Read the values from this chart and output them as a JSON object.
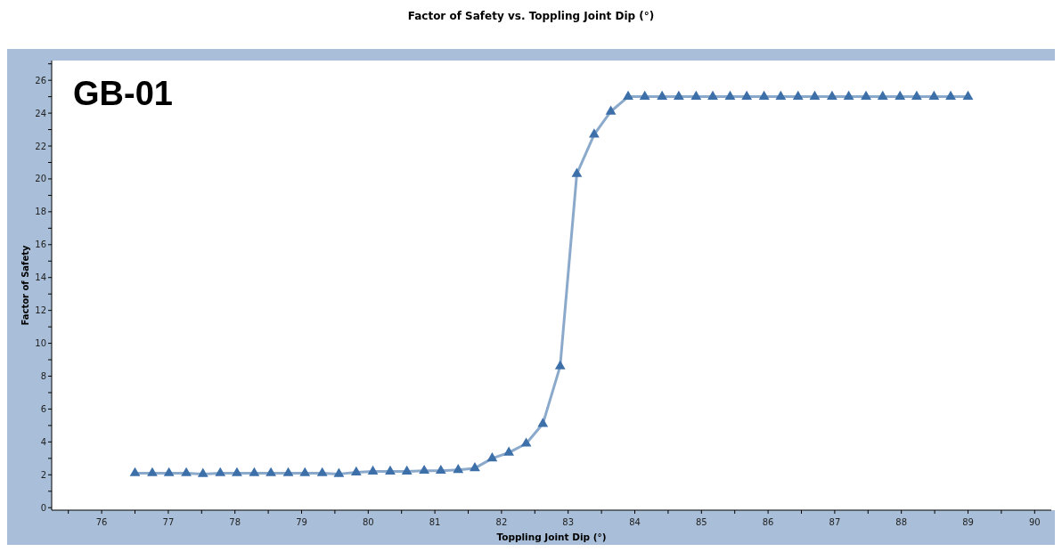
{
  "chart_data": {
    "type": "line",
    "title": "Factor of Safety vs. Toppling Joint Dip (°)",
    "xlabel": "Toppling Joint Dip (°)",
    "ylabel": "Factor of Safety",
    "annotations": [
      "GB-01"
    ],
    "xlim": [
      75.25,
      90.25
    ],
    "ylim": [
      -0.15,
      27.2
    ],
    "xticks": [
      {
        "value": 75.5,
        "label": null
      },
      76,
      {
        "value": 76.5,
        "label": null
      },
      77,
      {
        "value": 77.5,
        "label": null
      },
      78,
      {
        "value": 78.5,
        "label": null
      },
      79,
      {
        "value": 79.5,
        "label": null
      },
      80,
      {
        "value": 80.5,
        "label": null
      },
      81,
      {
        "value": 81.5,
        "label": null
      },
      82,
      {
        "value": 82.5,
        "label": null
      },
      83,
      {
        "value": 83.5,
        "label": null
      },
      84,
      {
        "value": 84.5,
        "label": null
      },
      85,
      {
        "value": 85.5,
        "label": null
      },
      86,
      {
        "value": 86.5,
        "label": null
      },
      87,
      {
        "value": 87.5,
        "label": null
      },
      88,
      {
        "value": 88.5,
        "label": null
      },
      89,
      {
        "value": 89.5,
        "label": null
      },
      90
    ],
    "yticks": [
      0,
      {
        "value": 1,
        "label": null
      },
      2,
      {
        "value": 3,
        "label": null
      },
      4,
      {
        "value": 5,
        "label": null
      },
      6,
      {
        "value": 7,
        "label": null
      },
      8,
      {
        "value": 9,
        "label": null
      },
      10,
      {
        "value": 11,
        "label": null
      },
      12,
      {
        "value": 13,
        "label": null
      },
      14,
      {
        "value": 15,
        "label": null
      },
      16,
      {
        "value": 17,
        "label": null
      },
      18,
      {
        "value": 19,
        "label": null
      },
      20,
      {
        "value": 21,
        "label": null
      },
      22,
      {
        "value": 23,
        "label": null
      },
      24,
      {
        "value": 25,
        "label": null
      },
      26,
      {
        "value": 27,
        "label": null
      }
    ],
    "grid": false,
    "marker": "triangle",
    "line_style": "solid",
    "x": [
      76.5,
      76.76,
      77.01,
      77.27,
      77.52,
      77.78,
      78.03,
      78.29,
      78.54,
      78.8,
      79.05,
      79.31,
      79.56,
      79.82,
      80.07,
      80.33,
      80.58,
      80.84,
      81.09,
      81.35,
      81.6,
      81.86,
      82.11,
      82.37,
      82.62,
      82.88,
      83.13,
      83.39,
      83.64,
      83.9,
      84.15,
      84.41,
      84.66,
      84.92,
      85.17,
      85.43,
      85.68,
      85.94,
      86.19,
      86.45,
      86.7,
      86.96,
      87.21,
      87.47,
      87.72,
      87.98,
      88.23,
      88.49,
      88.74,
      89.0
    ],
    "series": [
      {
        "color": "#3d6fa9",
        "values": [
          2.1,
          2.1,
          2.1,
          2.1,
          2.05,
          2.1,
          2.1,
          2.1,
          2.1,
          2.1,
          2.1,
          2.1,
          2.05,
          2.15,
          2.2,
          2.2,
          2.2,
          2.25,
          2.25,
          2.3,
          2.4,
          3.0,
          3.35,
          3.9,
          5.1,
          8.6,
          20.3,
          22.7,
          24.1,
          25.0,
          25.0,
          25.0,
          25.0,
          25.0,
          25.0,
          25.0,
          25.0,
          25.0,
          25.0,
          25.0,
          25.0,
          25.0,
          25.0,
          25.0,
          25.0,
          25.0,
          25.0,
          25.0,
          25.0,
          25.0
        ]
      }
    ]
  }
}
